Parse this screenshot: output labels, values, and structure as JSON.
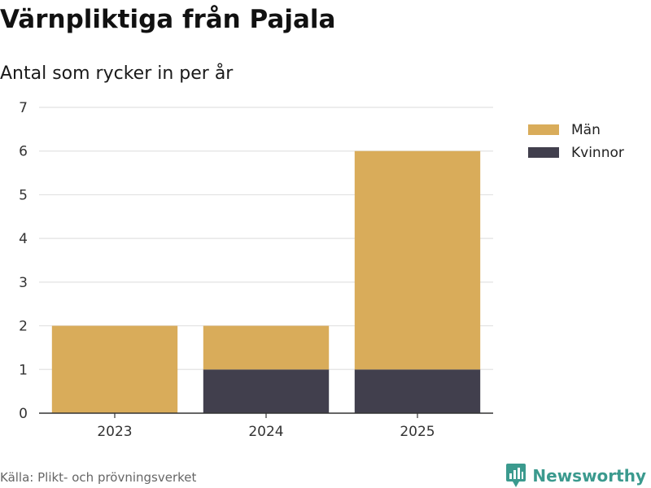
{
  "chart_data": {
    "type": "bar",
    "stacked": true,
    "title": "Värnpliktiga från Pajala",
    "subtitle": "Antal som rycker in per år",
    "categories": [
      "2023",
      "2024",
      "2025"
    ],
    "series": [
      {
        "name": "Kvinnor",
        "values": [
          0,
          1,
          1
        ],
        "color": "#413f4d"
      },
      {
        "name": "Män",
        "values": [
          2,
          1,
          5
        ],
        "color": "#d9ac5a"
      }
    ],
    "legend_order": [
      "Män",
      "Kvinnor"
    ],
    "yticks": [
      "0",
      "1",
      "2",
      "3",
      "4",
      "5",
      "6",
      "7"
    ],
    "ylim": [
      0,
      7
    ],
    "xlabel": "",
    "ylabel": "",
    "grid": true,
    "legend_position": "top-right"
  },
  "footer": {
    "source": "Källa: Plikt- och prövningsverket",
    "brand": "Newsworthy",
    "brand_color": "#3b9a8e",
    "brand_icon": "bar-chart-speech-icon"
  }
}
